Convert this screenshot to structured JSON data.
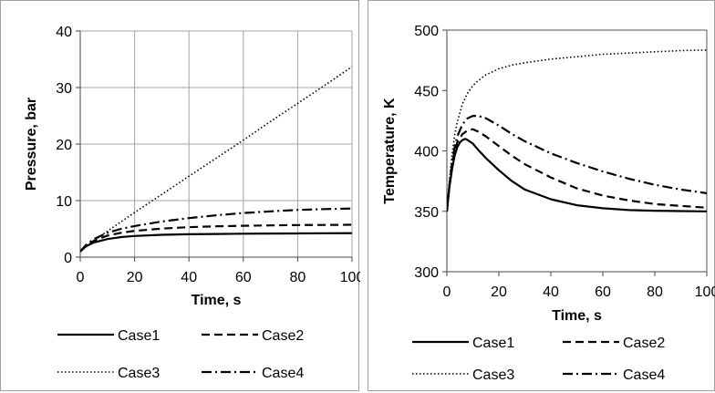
{
  "chart_data": [
    {
      "type": "line",
      "xlabel": "Time, s",
      "ylabel": "Pressure, bar",
      "xlim": [
        0,
        100
      ],
      "ylim": [
        0,
        40
      ],
      "xticks": [
        0,
        20,
        40,
        60,
        80,
        100
      ],
      "yticks": [
        0,
        10,
        20,
        30,
        40
      ],
      "grid": true,
      "legend": "bottom",
      "series": [
        {
          "name": "Case1",
          "style": "solid",
          "x": [
            0,
            2,
            5,
            10,
            15,
            20,
            30,
            40,
            50,
            60,
            70,
            80,
            90,
            100
          ],
          "y": [
            1.0,
            1.9,
            2.6,
            3.2,
            3.55,
            3.75,
            3.95,
            4.05,
            4.1,
            4.15,
            4.18,
            4.2,
            4.22,
            4.25
          ]
        },
        {
          "name": "Case2",
          "style": "dashed",
          "x": [
            0,
            2,
            5,
            10,
            15,
            20,
            30,
            40,
            50,
            60,
            70,
            80,
            90,
            100
          ],
          "y": [
            1.0,
            2.0,
            2.9,
            3.8,
            4.3,
            4.65,
            5.05,
            5.3,
            5.45,
            5.55,
            5.62,
            5.67,
            5.7,
            5.72
          ]
        },
        {
          "name": "Case3",
          "style": "dotted",
          "x": [
            0,
            5,
            10,
            20,
            30,
            40,
            50,
            60,
            70,
            80,
            90,
            100
          ],
          "y": [
            1.0,
            2.9,
            4.6,
            7.9,
            11.1,
            14.3,
            17.5,
            20.7,
            24.0,
            27.2,
            30.4,
            33.7
          ]
        },
        {
          "name": "Case4",
          "style": "dashdot",
          "x": [
            0,
            2,
            5,
            10,
            15,
            20,
            30,
            40,
            50,
            60,
            70,
            80,
            90,
            100
          ],
          "y": [
            1.0,
            2.1,
            3.2,
            4.3,
            5.0,
            5.5,
            6.3,
            6.9,
            7.4,
            7.8,
            8.1,
            8.35,
            8.5,
            8.6
          ]
        }
      ]
    },
    {
      "type": "line",
      "xlabel": "Time, s",
      "ylabel": "Temperature, K",
      "xlim": [
        0,
        100
      ],
      "ylim": [
        300,
        500
      ],
      "xticks": [
        0,
        20,
        40,
        60,
        80,
        100
      ],
      "yticks": [
        300,
        350,
        400,
        450,
        500
      ],
      "grid": false,
      "legend": "bottom",
      "series": [
        {
          "name": "Case1",
          "style": "solid",
          "x": [
            0,
            1,
            2,
            3,
            4,
            5,
            6,
            7,
            8,
            10,
            12,
            15,
            20,
            25,
            30,
            40,
            50,
            60,
            70,
            80,
            90,
            100
          ],
          "y": [
            350,
            370,
            385,
            396,
            403,
            407,
            409,
            410,
            409,
            406,
            401,
            394,
            384,
            375,
            368,
            360,
            355,
            352.5,
            351,
            350.5,
            350.2,
            350
          ]
        },
        {
          "name": "Case2",
          "style": "dashed",
          "x": [
            0,
            1,
            2,
            3,
            4,
            6,
            8,
            10,
            12,
            15,
            20,
            25,
            30,
            40,
            50,
            60,
            70,
            80,
            90,
            100
          ],
          "y": [
            350,
            372,
            388,
            400,
            407,
            414,
            417,
            418,
            416,
            412,
            404,
            396,
            389,
            378,
            369,
            363,
            359,
            356,
            354.5,
            353
          ]
        },
        {
          "name": "Case3",
          "style": "dotted",
          "x": [
            0,
            1,
            2,
            3,
            4,
            6,
            8,
            10,
            12,
            15,
            20,
            25,
            30,
            40,
            50,
            60,
            70,
            80,
            90,
            100
          ],
          "y": [
            350,
            376,
            397,
            413,
            424,
            439,
            448,
            454,
            458,
            463,
            468,
            471,
            473,
            476,
            478,
            480,
            481,
            482,
            483,
            483.5
          ]
        },
        {
          "name": "Case4",
          "style": "dashdot",
          "x": [
            0,
            1,
            2,
            3,
            4,
            6,
            8,
            10,
            12,
            15,
            20,
            25,
            30,
            40,
            50,
            60,
            70,
            80,
            90,
            100
          ],
          "y": [
            350,
            372,
            390,
            403,
            412,
            422,
            427,
            429,
            429,
            427,
            421,
            414,
            408,
            398,
            390,
            383,
            377,
            372,
            368,
            365
          ]
        }
      ]
    }
  ]
}
